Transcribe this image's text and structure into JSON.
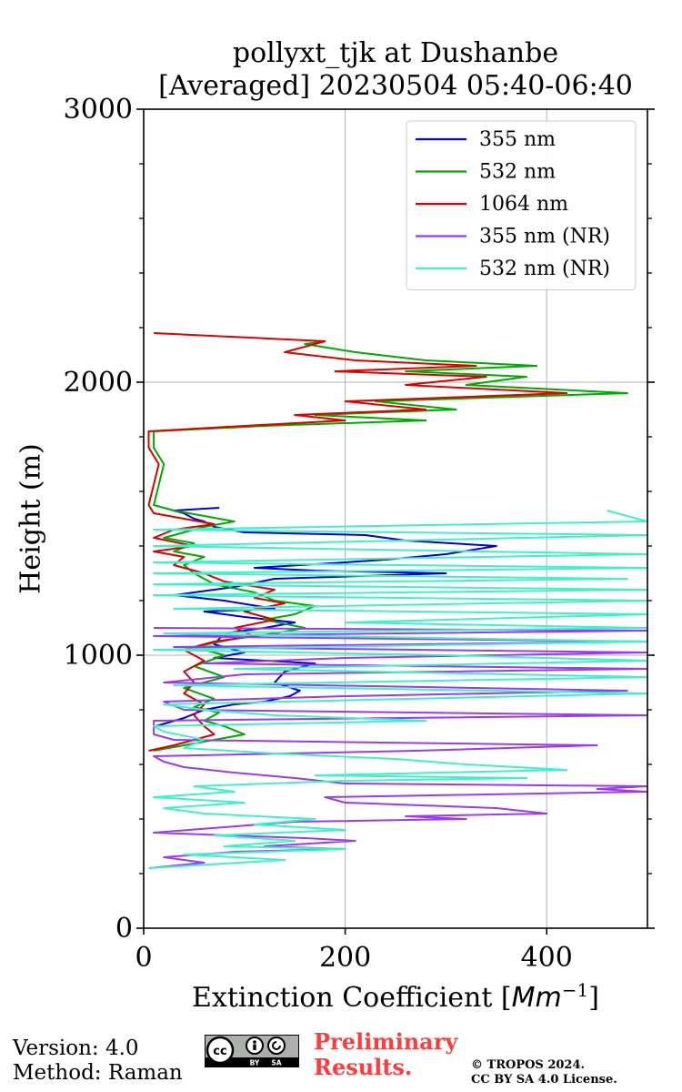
{
  "title_line1": "pollyxt_tjk at Dushanbe",
  "title_line2": "[Averaged] 20230504 05:40-06:40",
  "footer": {
    "version": "Version: 4.0",
    "method": "Method: Raman",
    "preliminary_line1": "Preliminary",
    "preliminary_line2": "Results.",
    "copyright_line1": "© TROPOS 2024.",
    "copyright_line2": "CC BY SA 4.0 License.",
    "license_badge": "cc-by-sa-icon"
  },
  "chart_data": {
    "type": "line",
    "title": "pollyxt_tjk at Dushanbe [Averaged] 20230504 05:40-06:40",
    "xlabel": "Extinction Coefficient [Mm^-1]",
    "xlabel_prefix": "Extinction Coefficient [",
    "xlabel_unit": "Mm",
    "xlabel_exp": "−1",
    "xlabel_suffix": "]",
    "ylabel": "Height (m)",
    "xlim": [
      0,
      500
    ],
    "ylim": [
      0,
      3000
    ],
    "xticks": [
      "0",
      "200",
      "400"
    ],
    "yticks": [
      "0",
      "1000",
      "2000",
      "3000"
    ],
    "grid": true,
    "legend_position": "top-right",
    "series": [
      {
        "name": "355 nm",
        "color": "#0000dd",
        "points": [
          [
            12,
            740
          ],
          [
            40,
            770
          ],
          [
            60,
            800
          ],
          [
            90,
            820
          ],
          [
            120,
            830
          ],
          [
            145,
            850
          ],
          [
            155,
            870
          ],
          [
            130,
            900
          ],
          [
            140,
            940
          ],
          [
            170,
            970
          ],
          [
            70,
            990
          ],
          [
            100,
            1010
          ],
          [
            70,
            1040
          ],
          [
            80,
            1080
          ],
          [
            120,
            1100
          ],
          [
            150,
            1120
          ],
          [
            100,
            1140
          ],
          [
            60,
            1160
          ],
          [
            130,
            1170
          ],
          [
            80,
            1200
          ],
          [
            30,
            1220
          ],
          [
            90,
            1250
          ],
          [
            130,
            1280
          ],
          [
            300,
            1300
          ],
          [
            170,
            1310
          ],
          [
            110,
            1320
          ],
          [
            200,
            1340
          ],
          [
            240,
            1350
          ],
          [
            300,
            1370
          ],
          [
            350,
            1400
          ],
          [
            260,
            1420
          ],
          [
            220,
            1440
          ],
          [
            100,
            1450
          ],
          [
            70,
            1470
          ],
          [
            60,
            1490
          ],
          [
            50,
            1500
          ],
          [
            40,
            1520
          ],
          [
            30,
            1530
          ],
          [
            75,
            1540
          ]
        ]
      },
      {
        "name": "532 nm",
        "color": "#00aa00",
        "points": [
          [
            10,
            650
          ],
          [
            40,
            670
          ],
          [
            70,
            690
          ],
          [
            100,
            710
          ],
          [
            80,
            740
          ],
          [
            60,
            760
          ],
          [
            75,
            790
          ],
          [
            50,
            810
          ],
          [
            70,
            840
          ],
          [
            40,
            880
          ],
          [
            80,
            920
          ],
          [
            50,
            960
          ],
          [
            80,
            1000
          ],
          [
            50,
            1030
          ],
          [
            90,
            1060
          ],
          [
            130,
            1080
          ],
          [
            160,
            1100
          ],
          [
            120,
            1130
          ],
          [
            150,
            1150
          ],
          [
            170,
            1180
          ],
          [
            130,
            1200
          ],
          [
            110,
            1230
          ],
          [
            70,
            1260
          ],
          [
            50,
            1300
          ],
          [
            40,
            1330
          ],
          [
            60,
            1360
          ],
          [
            30,
            1380
          ],
          [
            50,
            1410
          ],
          [
            20,
            1430
          ],
          [
            60,
            1470
          ],
          [
            90,
            1490
          ],
          [
            60,
            1510
          ],
          [
            30,
            1530
          ],
          [
            10,
            1550
          ],
          [
            20,
            1700
          ],
          [
            10,
            1760
          ],
          [
            10,
            1820
          ],
          [
            120,
            1840
          ],
          [
            280,
            1860
          ],
          [
            170,
            1880
          ],
          [
            310,
            1900
          ],
          [
            230,
            1930
          ],
          [
            480,
            1960
          ],
          [
            320,
            1990
          ],
          [
            380,
            2020
          ],
          [
            260,
            2040
          ],
          [
            390,
            2060
          ],
          [
            280,
            2080
          ],
          [
            210,
            2110
          ],
          [
            160,
            2140
          ],
          [
            180,
            2150
          ]
        ]
      },
      {
        "name": "1064 nm",
        "color": "#dd0000",
        "points": [
          [
            5,
            650
          ],
          [
            30,
            670
          ],
          [
            50,
            690
          ],
          [
            70,
            710
          ],
          [
            60,
            740
          ],
          [
            50,
            780
          ],
          [
            60,
            820
          ],
          [
            40,
            860
          ],
          [
            50,
            900
          ],
          [
            40,
            940
          ],
          [
            60,
            980
          ],
          [
            40,
            1020
          ],
          [
            70,
            1050
          ],
          [
            110,
            1070
          ],
          [
            90,
            1100
          ],
          [
            130,
            1130
          ],
          [
            100,
            1160
          ],
          [
            140,
            1190
          ],
          [
            110,
            1210
          ],
          [
            130,
            1240
          ],
          [
            80,
            1270
          ],
          [
            60,
            1300
          ],
          [
            30,
            1330
          ],
          [
            40,
            1360
          ],
          [
            10,
            1380
          ],
          [
            50,
            1400
          ],
          [
            10,
            1430
          ],
          [
            30,
            1460
          ],
          [
            70,
            1480
          ],
          [
            40,
            1500
          ],
          [
            10,
            1520
          ],
          [
            5,
            1550
          ],
          [
            15,
            1700
          ],
          [
            5,
            1760
          ],
          [
            5,
            1820
          ],
          [
            100,
            1840
          ],
          [
            200,
            1860
          ],
          [
            150,
            1880
          ],
          [
            280,
            1900
          ],
          [
            200,
            1930
          ],
          [
            420,
            1960
          ],
          [
            260,
            1990
          ],
          [
            340,
            2020
          ],
          [
            190,
            2040
          ],
          [
            330,
            2060
          ],
          [
            210,
            2080
          ],
          [
            140,
            2110
          ],
          [
            180,
            2150
          ],
          [
            10,
            2180
          ]
        ]
      },
      {
        "name": "355 nm (NR)",
        "color": "#9b3bf0",
        "points": [
          [
            5,
            220
          ],
          [
            60,
            240
          ],
          [
            20,
            260
          ],
          [
            90,
            280
          ],
          [
            200,
            290
          ],
          [
            120,
            300
          ],
          [
            210,
            320
          ],
          [
            160,
            330
          ],
          [
            10,
            350
          ],
          [
            80,
            370
          ],
          [
            150,
            390
          ],
          [
            320,
            400
          ],
          [
            260,
            410
          ],
          [
            400,
            420
          ],
          [
            350,
            440
          ],
          [
            200,
            460
          ],
          [
            180,
            480
          ],
          [
            500,
            500
          ],
          [
            450,
            510
          ],
          [
            500,
            520
          ],
          [
            200,
            530
          ],
          [
            150,
            550
          ],
          [
            90,
            570
          ],
          [
            40,
            590
          ],
          [
            20,
            610
          ],
          [
            10,
            630
          ],
          [
            270,
            650
          ],
          [
            450,
            670
          ],
          [
            30,
            690
          ],
          [
            10,
            710
          ],
          [
            10,
            760
          ],
          [
            500,
            780
          ],
          [
            40,
            800
          ],
          [
            20,
            830
          ],
          [
            200,
            850
          ],
          [
            480,
            870
          ],
          [
            20,
            900
          ],
          [
            100,
            930
          ],
          [
            500,
            950
          ],
          [
            60,
            970
          ],
          [
            200,
            990
          ],
          [
            500,
            1010
          ],
          [
            30,
            1030
          ],
          [
            500,
            1050
          ],
          [
            10,
            1070
          ],
          [
            500,
            1090
          ],
          [
            10,
            1100
          ]
        ]
      },
      {
        "name": "532 nm (NR)",
        "color": "#40f0c8",
        "points": [
          [
            5,
            220
          ],
          [
            140,
            250
          ],
          [
            40,
            270
          ],
          [
            200,
            290
          ],
          [
            80,
            300
          ],
          [
            150,
            320
          ],
          [
            70,
            340
          ],
          [
            200,
            360
          ],
          [
            110,
            380
          ],
          [
            170,
            400
          ],
          [
            60,
            420
          ],
          [
            20,
            440
          ],
          [
            100,
            460
          ],
          [
            10,
            480
          ],
          [
            90,
            500
          ],
          [
            50,
            520
          ],
          [
            200,
            540
          ],
          [
            380,
            550
          ],
          [
            170,
            560
          ],
          [
            420,
            580
          ],
          [
            320,
            600
          ],
          [
            250,
            620
          ],
          [
            130,
            640
          ],
          [
            40,
            660
          ],
          [
            60,
            690
          ],
          [
            20,
            720
          ],
          [
            10,
            740
          ],
          [
            280,
            760
          ],
          [
            130,
            780
          ],
          [
            60,
            800
          ],
          [
            20,
            820
          ],
          [
            500,
            860
          ],
          [
            30,
            890
          ],
          [
            500,
            920
          ],
          [
            90,
            950
          ],
          [
            500,
            980
          ],
          [
            300,
            1000
          ],
          [
            10,
            1020
          ],
          [
            500,
            1050
          ],
          [
            20,
            1080
          ],
          [
            500,
            1100
          ],
          [
            200,
            1120
          ],
          [
            500,
            1150
          ],
          [
            30,
            1170
          ],
          [
            500,
            1200
          ],
          [
            10,
            1220
          ],
          [
            500,
            1240
          ],
          [
            10,
            1260
          ],
          [
            480,
            1280
          ],
          [
            10,
            1300
          ],
          [
            500,
            1320
          ],
          [
            10,
            1340
          ],
          [
            500,
            1370
          ],
          [
            10,
            1400
          ],
          [
            500,
            1440
          ],
          [
            10,
            1460
          ],
          [
            500,
            1490
          ],
          [
            460,
            1530
          ]
        ]
      }
    ]
  }
}
